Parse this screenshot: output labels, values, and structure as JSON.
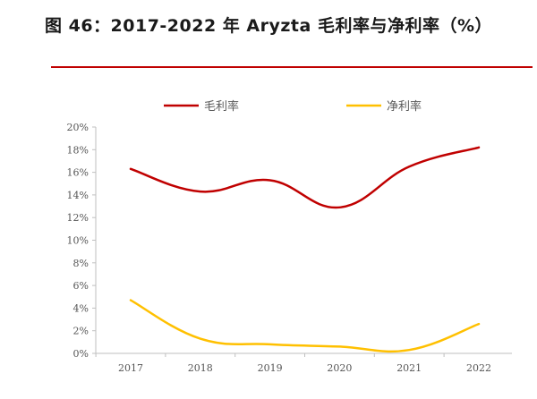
{
  "header": {
    "title": "图 46：2017-2022 年 Aryzta 毛利率与净利率（%）"
  },
  "colors": {
    "rule": "#c00000",
    "gross": "#c00000",
    "net": "#ffc000",
    "axis": "#bfbfbf"
  },
  "chart_data": {
    "type": "line",
    "categories": [
      "2017",
      "2018",
      "2019",
      "2020",
      "2021",
      "2022"
    ],
    "series": [
      {
        "name": "毛利率",
        "values": [
          16.3,
          14.3,
          15.3,
          12.9,
          16.5,
          18.2
        ]
      },
      {
        "name": "净利率",
        "values": [
          4.7,
          1.3,
          0.8,
          0.6,
          0.3,
          2.6
        ]
      }
    ],
    "ylim": [
      0,
      20
    ],
    "yticks": [
      "0%",
      "2%",
      "4%",
      "6%",
      "8%",
      "10%",
      "12%",
      "14%",
      "16%",
      "18%",
      "20%"
    ],
    "legend_position": "top",
    "grid": false
  }
}
